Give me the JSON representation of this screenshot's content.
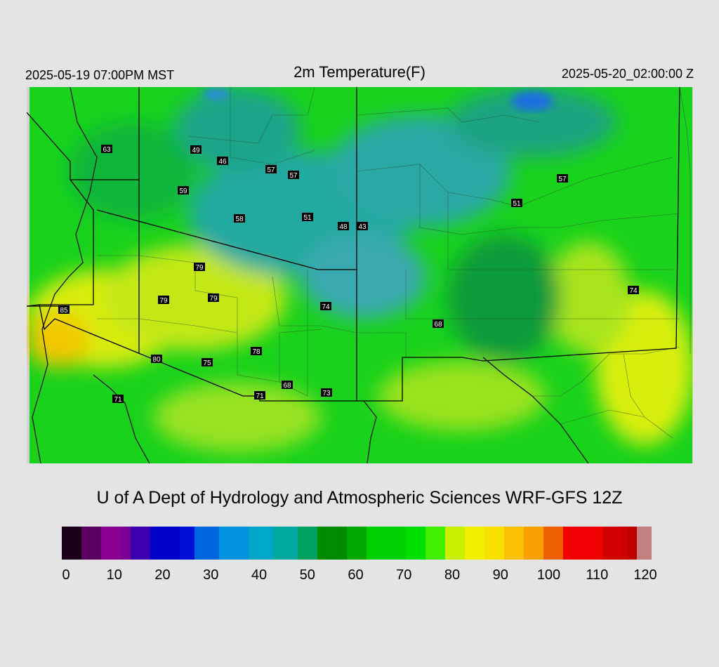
{
  "header": {
    "local_time": "2025-05-19 07:00PM MST",
    "title": "2m Temperature(F)",
    "valid_time": "2025-05-20_02:00:00 Z"
  },
  "credit": "U of A Dept of Hydrology and Atmospheric Sciences WRF-GFS 12Z",
  "station_labels": [
    "63",
    "49",
    "46",
    "57",
    "57",
    "59",
    "58",
    "51",
    "48",
    "43",
    "51",
    "57",
    "79",
    "79",
    "79",
    "85",
    "74",
    "68",
    "74",
    "80",
    "75",
    "78",
    "68",
    "71",
    "73",
    "71"
  ],
  "colorbar": {
    "min": 0,
    "max": 120,
    "ticks": [
      "0",
      "10",
      "20",
      "30",
      "40",
      "50",
      "60",
      "70",
      "80",
      "90",
      "100",
      "110",
      "120"
    ],
    "stops": [
      [
        0,
        "#1a0018"
      ],
      [
        4,
        "#5a0060"
      ],
      [
        8,
        "#8a0090"
      ],
      [
        12,
        "#7a0099"
      ],
      [
        14,
        "#3a00b0"
      ],
      [
        18,
        "#0000c8"
      ],
      [
        24,
        "#0010d8"
      ],
      [
        27,
        "#0066e0"
      ],
      [
        32,
        "#0090e0"
      ],
      [
        38,
        "#00a6c8"
      ],
      [
        43,
        "#00a8a0"
      ],
      [
        48,
        "#00a060"
      ],
      [
        52,
        "#008a00"
      ],
      [
        58,
        "#00a800"
      ],
      [
        62,
        "#00d000"
      ],
      [
        70,
        "#00e000"
      ],
      [
        74,
        "#40f000"
      ],
      [
        78,
        "#c8f000"
      ],
      [
        82,
        "#f0f000"
      ],
      [
        86,
        "#f8e000"
      ],
      [
        90,
        "#f8c000"
      ],
      [
        94,
        "#f8a000"
      ],
      [
        98,
        "#f06000"
      ],
      [
        102,
        "#f00000"
      ],
      [
        108,
        "#f00000"
      ],
      [
        110,
        "#d00000"
      ],
      [
        115,
        "#c00000"
      ],
      [
        117,
        "#c08080"
      ],
      [
        120,
        "#d8d8d8"
      ]
    ]
  }
}
